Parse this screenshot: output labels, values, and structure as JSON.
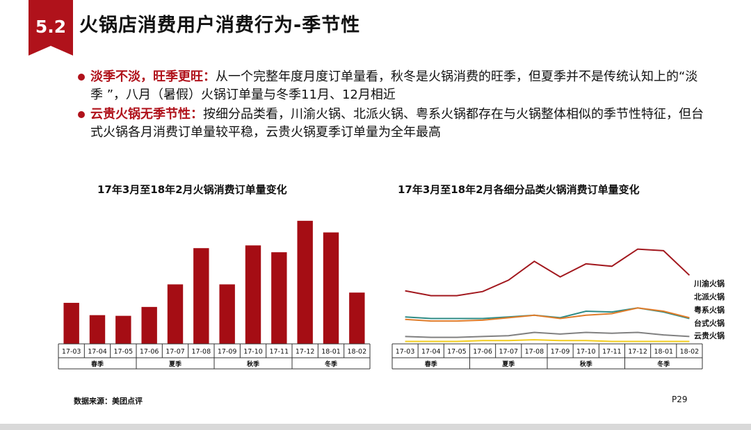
{
  "header": {
    "section_number": "5.2",
    "title": "火锅店消费用户消费行为-季节性"
  },
  "bullets": [
    {
      "highlight": "淡季不淡，旺季更旺：",
      "text": "从一个完整年度月度订单量看，秋冬是火锅消费的旺季，但夏季并不是传统认知上的“淡季 ”，八月（暑假）火锅订单量与冬季11月、12月相近"
    },
    {
      "highlight": "云贵火锅无季节性：",
      "text": "按细分品类看，川渝火锅、北派火锅、粤系火锅都存在与火锅整体相似的季节性特征，但台式火锅各月消费订单量较平稳，云贵火锅夏季订单量为全年最高"
    }
  ],
  "colors": {
    "accent": "#b0121b",
    "bar": "#a50d14",
    "chuanyu": "#a2181e",
    "beipai": "#2e8b85",
    "yuexi": "#808080",
    "taishi": "#e07c2a",
    "yungui": "#f2cc1c"
  },
  "chart_data": [
    {
      "type": "bar",
      "title": "17年3月至18年2月火锅消费订单量变化",
      "categories": [
        "17-03",
        "17-04",
        "17-05",
        "17-06",
        "17-07",
        "17-08",
        "17-09",
        "17-10",
        "17-11",
        "17-12",
        "18-01",
        "18-02"
      ],
      "values": [
        60,
        42,
        41,
        54,
        87,
        140,
        87,
        144,
        134,
        180,
        163,
        75
      ],
      "ylim": [
        0,
        190
      ],
      "seasons": [
        {
          "label": "春季",
          "span": 3
        },
        {
          "label": "夏季",
          "span": 3
        },
        {
          "label": "秋季",
          "span": 3
        },
        {
          "label": "冬季",
          "span": 3
        }
      ]
    },
    {
      "type": "line",
      "title": "17年3月至18年2月各细分品类火锅消费订单量变化",
      "categories": [
        "17-03",
        "17-04",
        "17-05",
        "17-06",
        "17-07",
        "17-08",
        "17-09",
        "17-10",
        "17-11",
        "17-12",
        "18-01",
        "18-02"
      ],
      "ylim": [
        0,
        125
      ],
      "series": [
        {
          "name": "川渝火锅",
          "color_key": "chuanyu",
          "values": [
            65,
            59,
            59,
            64,
            78,
            101,
            82,
            98,
            95,
            116,
            114,
            84
          ]
        },
        {
          "name": "北派火锅",
          "color_key": "beipai",
          "values": [
            33,
            31,
            31,
            31,
            33,
            35,
            32,
            40,
            39,
            44,
            39,
            31
          ]
        },
        {
          "name": "粤系火锅",
          "color_key": "yuexi",
          "values": [
            9,
            8,
            8,
            9,
            10,
            14,
            12,
            14,
            13,
            14,
            11,
            9
          ]
        },
        {
          "name": "台式火锅",
          "color_key": "taishi",
          "values": [
            30,
            28,
            28,
            29,
            32,
            35,
            31,
            35,
            37,
            44,
            40,
            32
          ]
        },
        {
          "name": "云贵火锅",
          "color_key": "yungui",
          "values": [
            3,
            3,
            3,
            4,
            4,
            5,
            4,
            4,
            3,
            3,
            3,
            3
          ]
        }
      ],
      "seasons": [
        {
          "label": "春季",
          "span": 3
        },
        {
          "label": "夏季",
          "span": 3
        },
        {
          "label": "秋季",
          "span": 3
        },
        {
          "label": "冬季",
          "span": 3
        }
      ]
    }
  ],
  "footer": {
    "source": "数据来源：美团点评",
    "page": "P29"
  }
}
